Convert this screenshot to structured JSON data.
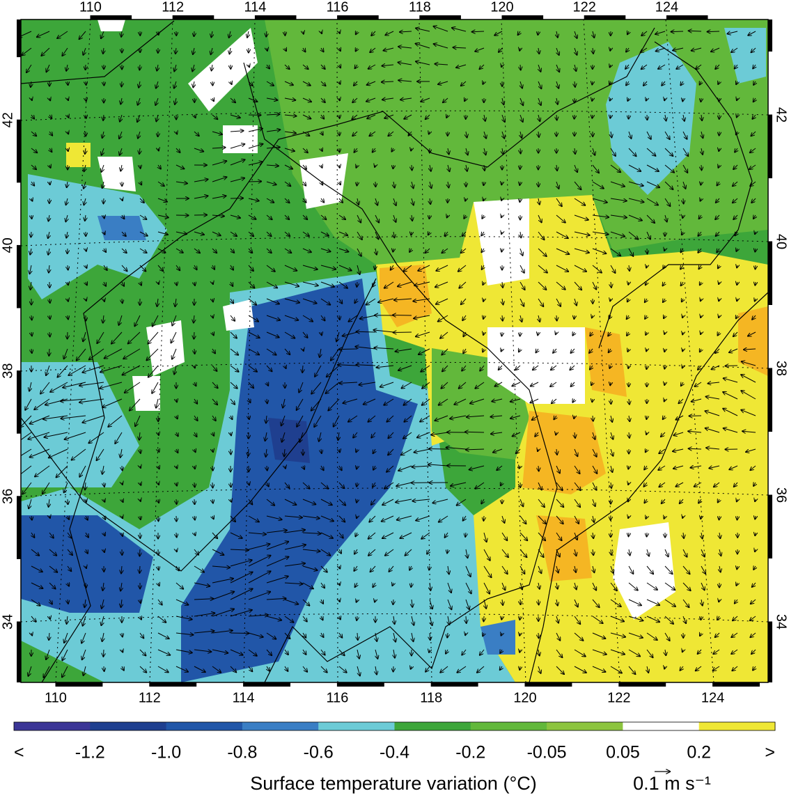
{
  "map": {
    "top_lon_ticks": [
      110,
      112,
      114,
      116,
      118,
      120,
      122,
      124
    ],
    "bottom_lon_ticks": [
      110,
      112,
      114,
      116,
      118,
      120,
      122,
      124
    ],
    "left_lat_ticks": [
      34,
      36,
      38,
      40,
      42
    ],
    "right_lat_ticks": [
      34,
      36,
      38,
      40,
      42
    ],
    "colorbar": {
      "colors": [
        "#3b3596",
        "#1f3f8f",
        "#2156a8",
        "#3a7ec4",
        "#6ccbd6",
        "#3da63a",
        "#62b83b",
        "#8cc43f",
        "#ffffff",
        "#efe735",
        "#f5b623"
      ],
      "labels": [
        "<",
        "-1.2",
        "-1.0",
        "-0.8",
        "-0.6",
        "-0.4",
        "-0.2",
        "-0.05",
        "0.05",
        "0.2",
        ">"
      ]
    },
    "colorbar_title": "Surface temperature variation (°C)",
    "vector_scale": "0.1 m s⁻¹"
  }
}
